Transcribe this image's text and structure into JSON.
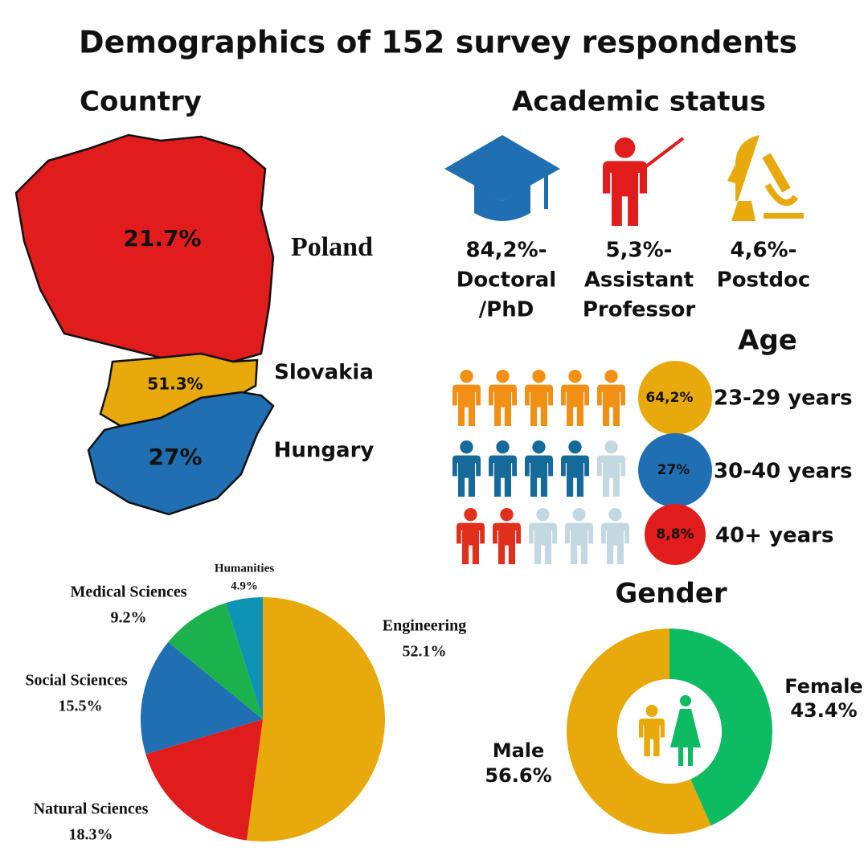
{
  "title": "Demographics of 152 survey respondents",
  "country": {
    "heading": "Country",
    "regions": [
      {
        "name": "Poland",
        "share": "21.7%"
      },
      {
        "name": "Slovakia",
        "share": "51.3%"
      },
      {
        "name": "Hungary",
        "share": "27%"
      }
    ]
  },
  "academic": {
    "heading": "Academic status",
    "items": [
      {
        "lines": [
          "84,2%-",
          "Doctoral",
          "/PhD"
        ]
      },
      {
        "lines": [
          "5,3%-",
          "Assistant",
          "Professor"
        ]
      },
      {
        "lines": [
          "4,6%-",
          "Postdoc"
        ]
      }
    ]
  },
  "age": {
    "heading": "Age",
    "rows": [
      {
        "share": "64,2%",
        "label": "23-29 years"
      },
      {
        "share": "27%",
        "label": "30-40 years"
      },
      {
        "share": "8,8%",
        "label": "40+ years"
      }
    ]
  },
  "chart_data": [
    {
      "type": "pie",
      "categories": [
        "Engineering",
        "Natural Sciences",
        "Social Sciences",
        "Medical Sciences",
        "Humanities"
      ],
      "values": [
        52.1,
        18.3,
        15.5,
        9.2,
        4.9
      ],
      "value_labels": [
        "52.1%",
        "18.3%",
        "15.5%",
        "9.2%",
        "4.9%"
      ],
      "colors": [
        "#e8a90c",
        "#e01c1c",
        "#1f6fb2",
        "#1bb24e",
        "#0e93b5"
      ]
    },
    {
      "type": "donut",
      "title": "Gender",
      "categories": [
        "Female",
        "Male"
      ],
      "values": [
        43.4,
        56.6
      ],
      "value_labels": [
        "43.4%",
        "56.6%"
      ],
      "colors": [
        "#0dbb62",
        "#e8a90c"
      ]
    }
  ]
}
